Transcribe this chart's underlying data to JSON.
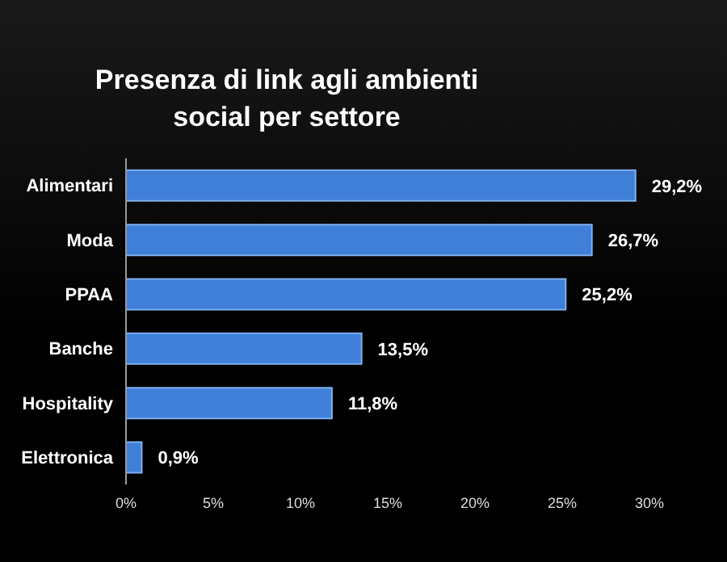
{
  "chart_data": {
    "type": "bar",
    "orientation": "horizontal",
    "title": "Presenza di link agli ambienti social per settore",
    "categories": [
      "Alimentari",
      "Moda",
      "PPAA",
      "Banche",
      "Hospitality",
      "Elettronica"
    ],
    "values": [
      29.2,
      26.7,
      25.2,
      13.5,
      11.8,
      0.9
    ],
    "value_labels": [
      "29,2%",
      "26,7%",
      "25,2%",
      "13,5%",
      "11,8%",
      "0,9%"
    ],
    "color": "#3f7fd8",
    "xlim": [
      0,
      30
    ],
    "xticks": [
      {
        "value": 0,
        "label": "0%"
      },
      {
        "value": 5,
        "label": "5%"
      },
      {
        "value": 10,
        "label": "10%"
      },
      {
        "value": 15,
        "label": "15%"
      },
      {
        "value": 20,
        "label": "20%"
      },
      {
        "value": 25,
        "label": "25%"
      },
      {
        "value": 30,
        "label": "30%"
      }
    ],
    "grid": false,
    "legend": false
  }
}
